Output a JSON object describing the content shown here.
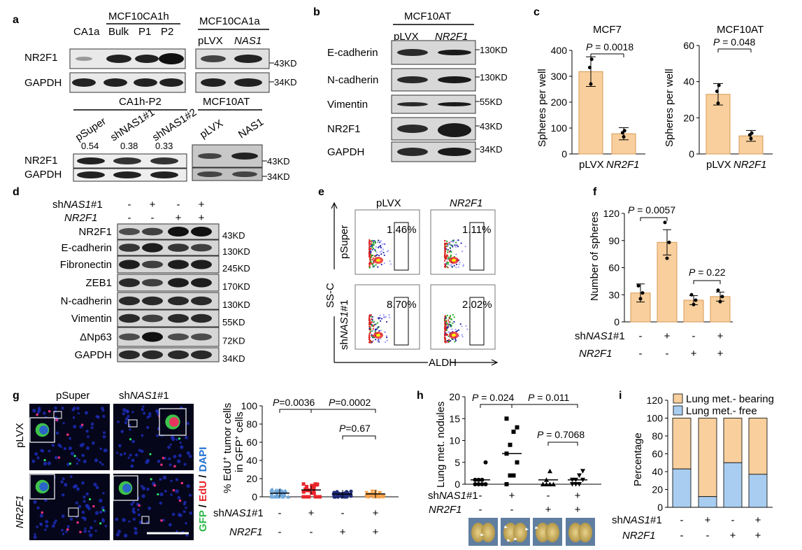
{
  "panel_letters": [
    "a",
    "b",
    "c",
    "d",
    "e",
    "f",
    "g",
    "h",
    "i"
  ],
  "colors": {
    "bar_fill": "#f8cf9d",
    "bar_stroke": "#d99a55",
    "red": "#e8252a",
    "blue": "#1f2a78",
    "light_blue": "#6fa8dc",
    "orange": "#f5a04a",
    "lung_free": "#a8cdf0",
    "lung_bearing": "#f8cf9d"
  },
  "panel_a": {
    "top_left": {
      "lanes": [
        "CA1a",
        "Bulk",
        "P1",
        "P2"
      ],
      "group": "MCF10CA1h",
      "rows": [
        "NR2F1",
        "GAPDH"
      ]
    },
    "top_right": {
      "group": "MCF10CA1a",
      "lanes": [
        "pLVX",
        "NAS1"
      ],
      "mw": [
        "43KD",
        "34KD"
      ]
    },
    "bottom_left": {
      "group": "CA1h-P2",
      "lanes": [
        "pSuper",
        "shNAS1#1",
        "shNAS1#2"
      ],
      "quant": [
        "0.54",
        "0.38",
        "0.33"
      ],
      "rows": [
        "NR2F1",
        "GAPDH"
      ]
    },
    "bottom_right": {
      "group": "MCF10AT",
      "lanes": [
        "pLVX",
        "NAS1"
      ],
      "mw": [
        "43KD",
        "34KD"
      ]
    }
  },
  "panel_b": {
    "group": "MCF10AT",
    "lanes": [
      "pLVX",
      "NR2F1"
    ],
    "rows": [
      "E-cadherin",
      "N-cadherin",
      "Vimentin",
      "NR2F1",
      "GAPDH"
    ],
    "mw": [
      "130KD",
      "130KD",
      "55KD",
      "43KD",
      "34KD"
    ]
  },
  "panel_c": {
    "charts": [
      {
        "title": "MCF7",
        "ylabel": "Spheres per well",
        "p": "P = 0.0018",
        "categories": [
          "pLVX",
          "NR2F1"
        ],
        "values": [
          318,
          78
        ],
        "ylim": [
          0,
          400
        ],
        "ticks": [
          "0",
          "100",
          "200",
          "300",
          "400"
        ]
      },
      {
        "title": "MCF10AT",
        "ylabel": "Spheres per well",
        "p": "P = 0.048",
        "categories": [
          "pLVX",
          "NR2F1"
        ],
        "values": [
          33,
          10
        ],
        "ylim": [
          0,
          60
        ],
        "ticks": [
          "0",
          "20",
          "40",
          "60"
        ]
      }
    ]
  },
  "panel_d": {
    "conditions": {
      "shNAS1#1": [
        "-",
        "+",
        "-",
        "+"
      ],
      "NR2F1": [
        "-",
        "-",
        "+",
        "+"
      ]
    },
    "rows": [
      "NR2F1",
      "E-cadherin",
      "Fibronectin",
      "ZEB1",
      "N-cadherin",
      "Vimentin",
      "ΔNp63",
      "GAPDH"
    ],
    "mw": [
      "43KD",
      "130KD",
      "245KD",
      "170KD",
      "130KD",
      "55KD",
      "72KD",
      "34KD"
    ]
  },
  "panel_e": {
    "cols": [
      "pLVX",
      "NR2F1"
    ],
    "rows": [
      "pSuper",
      "shNAS1#1"
    ],
    "values": [
      "1.46%",
      "1.11%",
      "8.70%",
      "2.02%"
    ],
    "xlabel": "ALDH",
    "ylabel": "SS-C"
  },
  "panel_f": {
    "ylabel": "Number of spheres",
    "values": [
      32,
      88,
      24,
      28
    ],
    "ylim": [
      0,
      120
    ],
    "ticks": [
      "0",
      "30",
      "60",
      "90",
      "120"
    ],
    "p1": "P = 0.0057",
    "p2": "P = 0.22",
    "cond_labels": [
      "shNAS1#1",
      "NR2F1"
    ],
    "shNAS1": [
      "-",
      "+",
      "-",
      "+"
    ],
    "NR2F1": [
      "-",
      "-",
      "+",
      "+"
    ]
  },
  "panel_g": {
    "col_labels": [
      "pSuper",
      "shNAS1#1"
    ],
    "row_labels": [
      "pLVX",
      "NR2F1"
    ],
    "stain": [
      "GFP",
      "/",
      "EdU",
      "/",
      "DAPI"
    ],
    "ylabel": "% EdU⁺ tumor cells in GFP⁺ cells",
    "ticks": [
      "0",
      "20",
      "40",
      "60",
      "80",
      "100"
    ],
    "p1": "P=0.0036",
    "p2": "P=0.0002",
    "p3": "P=0.67",
    "shNAS1": [
      "-",
      "+",
      "-",
      "+"
    ],
    "NR2F1": [
      "-",
      "-",
      "+",
      "+"
    ],
    "means": [
      4,
      7.5,
      3,
      3.2
    ]
  },
  "panel_h": {
    "ylabel": "Lung met. nodules",
    "ticks": [
      "0",
      "5",
      "10",
      "15",
      "20"
    ],
    "p1": "P = 0.024",
    "p2": "P = 0.011",
    "p3": "P = 0.7068",
    "shNAS1": [
      "-",
      "+",
      "-",
      "+"
    ],
    "NR2F1": [
      "-",
      "-",
      "+",
      "+"
    ],
    "means": [
      1,
      7,
      1,
      1
    ]
  },
  "panel_i": {
    "ylabel": "Percentage",
    "legend": [
      "Lung met.- bearing",
      "Lung met.- free"
    ],
    "ticks": [
      "0",
      "20",
      "40",
      "60",
      "80",
      "100",
      "120"
    ],
    "free": [
      43,
      12,
      50,
      37
    ],
    "shNAS1": [
      "-",
      "+",
      "-",
      "+"
    ],
    "NR2F1": [
      "-",
      "-",
      "+",
      "+"
    ]
  }
}
